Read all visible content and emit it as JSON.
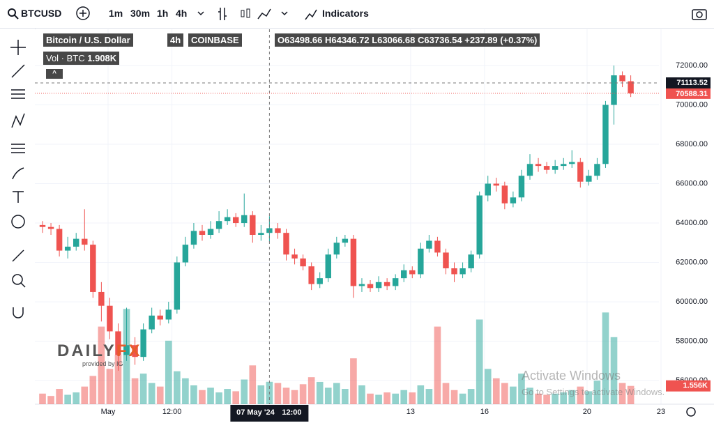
{
  "toolbar": {
    "symbol": "BTCUSD",
    "intervals": [
      "1m",
      "30m",
      "1h",
      "4h"
    ],
    "indicators": "Indicators"
  },
  "legend": {
    "name": "Bitcoin / U.S. Dollar",
    "interval": "4h",
    "exchange": "COINBASE",
    "open": "O63498.66",
    "high": "H64346.72",
    "low": "L63066.68",
    "close": "C63736.54",
    "change": "+237.89 (+0.37%)",
    "volume_name": "Vol · BTC",
    "volume": "1.908K"
  },
  "watermark": {
    "brand_a": "DAILY",
    "brand_b": "FX",
    "provided": "provided by IG"
  },
  "os_notice": {
    "title": "Activate Windows",
    "text": "Go to Settings to activate Windows."
  },
  "chart_data": {
    "type": "candlestick",
    "open": [
      63900,
      63800,
      63700,
      62600,
      62800,
      63200,
      62900,
      60500,
      59800,
      58500,
      57300,
      57800,
      57200,
      58600,
      59300,
      59100,
      59600,
      62000,
      62900,
      63600,
      63400,
      63700,
      64100,
      64300,
      64000,
      64400,
      63400,
      63498.66,
      63736.54,
      63500,
      62400,
      62200,
      61800,
      60900,
      61200,
      62400,
      63000,
      63200,
      60800,
      60900,
      60700,
      61000,
      60800,
      61200,
      61600,
      61400,
      62700,
      63100,
      62500,
      61700,
      61400,
      61700,
      62400,
      65400,
      66000,
      65900,
      65000,
      65300,
      66400,
      67000,
      66900,
      66700,
      66900,
      67000,
      67100,
      66100,
      66400,
      67000,
      70000,
      71500,
      71200
    ],
    "high": [
      64100,
      64000,
      63900,
      63300,
      63500,
      64700,
      63100,
      61000,
      60200,
      58900,
      59700,
      58200,
      58900,
      59700,
      59600,
      60000,
      62300,
      63300,
      64000,
      63900,
      64100,
      64600,
      64700,
      64500,
      65500,
      64600,
      63900,
      64346.72,
      64000,
      63700,
      62700,
      62400,
      62000,
      61500,
      62700,
      63300,
      63400,
      63400,
      61200,
      61100,
      61300,
      61200,
      61400,
      61900,
      61800,
      63000,
      63400,
      63300,
      62700,
      62000,
      62000,
      62600,
      65600,
      66400,
      66300,
      66100,
      65600,
      66700,
      67500,
      67300,
      67100,
      67200,
      67300,
      67700,
      67300,
      66700,
      67300,
      70200,
      72000,
      71700,
      71500
    ],
    "low": [
      63500,
      63400,
      62300,
      62200,
      62600,
      62600,
      60200,
      59000,
      58100,
      56500,
      57000,
      56800,
      57000,
      58400,
      58800,
      58900,
      59400,
      61800,
      62700,
      63100,
      63200,
      63500,
      63900,
      63800,
      63800,
      63000,
      63100,
      63066.68,
      63200,
      62100,
      61900,
      61600,
      60600,
      60700,
      61000,
      62200,
      62800,
      60200,
      60500,
      60500,
      60500,
      60600,
      60600,
      61000,
      61200,
      61200,
      62500,
      62300,
      61400,
      61000,
      61200,
      61500,
      62200,
      65100,
      65600,
      64700,
      64800,
      65100,
      66200,
      66600,
      66500,
      66500,
      66700,
      66800,
      65800,
      65900,
      66200,
      66800,
      69000,
      70900,
      70400
    ],
    "close": [
      63800,
      63700,
      62600,
      62800,
      63200,
      62900,
      60500,
      59800,
      58500,
      57300,
      57800,
      57200,
      58600,
      59300,
      59100,
      59600,
      62000,
      62900,
      63600,
      63400,
      63700,
      64100,
      64300,
      64000,
      64400,
      63400,
      63498.66,
      63736.54,
      63500,
      62400,
      62200,
      61800,
      60900,
      61200,
      62400,
      63000,
      63200,
      60800,
      60900,
      60700,
      61000,
      60800,
      61200,
      61600,
      61400,
      62700,
      63100,
      62500,
      61700,
      61400,
      61700,
      62400,
      65400,
      66000,
      65900,
      65000,
      65300,
      66400,
      67000,
      66900,
      66700,
      66900,
      67000,
      67100,
      66100,
      66400,
      67000,
      70000,
      71500,
      71200,
      70588.31
    ],
    "volume": {
      "values": [
        900,
        700,
        1300,
        800,
        1000,
        1500,
        2400,
        6600,
        3000,
        4200,
        8100,
        2200,
        2600,
        1800,
        1500,
        5400,
        2800,
        2200,
        1600,
        1200,
        1400,
        1000,
        1300,
        1100,
        2100,
        3300,
        1600,
        1908,
        1800,
        1400,
        1200,
        1700,
        2300,
        1900,
        1400,
        1800,
        1300,
        3900,
        1600,
        900,
        800,
        1000,
        900,
        1200,
        1000,
        1600,
        1300,
        6600,
        1800,
        1200,
        900,
        1300,
        7200,
        3000,
        2200,
        1800,
        1500,
        2600,
        1400,
        900,
        800,
        900,
        1000,
        1200,
        1500,
        1100,
        2000,
        7800,
        5700,
        1800,
        1556
      ],
      "last_label": "1.556K",
      "ylim": [
        0,
        9600
      ]
    },
    "up_color": "#26a69a",
    "down_color": "#ef5350",
    "grid": true,
    "xlim": [
      -0.25,
      73.6
    ],
    "xticks": [
      {
        "value": 7.8,
        "label": "May"
      },
      {
        "value": 15.4,
        "label": "12:00"
      },
      {
        "value": 43.8,
        "label": "13"
      },
      {
        "value": 52.6,
        "label": "16"
      },
      {
        "value": 64.8,
        "label": "20"
      },
      {
        "value": 73.6,
        "label": "23"
      }
    ],
    "ylim": [
      54800,
      73840
    ],
    "yticks": [
      {
        "value": 56000,
        "label": "56000.00"
      },
      {
        "value": 58000,
        "label": "58000.00"
      },
      {
        "value": 60000,
        "label": "60000.00"
      },
      {
        "value": 62000,
        "label": "62000.00"
      },
      {
        "value": 64000,
        "label": "64000.00"
      },
      {
        "value": 66000,
        "label": "66000.00"
      },
      {
        "value": 68000,
        "label": "68000.00"
      },
      {
        "value": 70000,
        "label": "70000.00"
      },
      {
        "value": 72000,
        "label": "72000.00"
      }
    ],
    "crosshair": {
      "index": 27,
      "date": "07 May '24",
      "time": "12:00",
      "price": 71113.52
    }
  }
}
